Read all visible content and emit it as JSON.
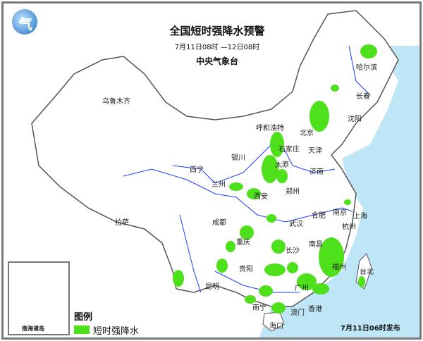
{
  "title": "全国短时强降水预警",
  "period": "7月11日08时 —12日08时",
  "agency": "中央气象台",
  "issued": "7月11日06时发布",
  "legend": {
    "title": "图例",
    "items": [
      {
        "label": "短时强降水",
        "color": "#4ee01a"
      }
    ]
  },
  "inset_label": "南海诸岛",
  "colors": {
    "sea": "#bfe6f7",
    "land": "#ffffff",
    "rain": "#4ee01a",
    "river": "#1a3cff",
    "border": "#555555"
  },
  "cities": [
    "乌鲁木齐",
    "哈尔滨",
    "长春",
    "沈阳",
    "呼和浩特",
    "北京",
    "天津",
    "石家庄",
    "银川",
    "太原",
    "济南",
    "西宁",
    "兰州",
    "郑州",
    "西安",
    "南京",
    "合肥",
    "上海",
    "成都",
    "武汉",
    "杭州",
    "拉萨",
    "重庆",
    "长沙",
    "南昌",
    "贵阳",
    "福州",
    "台北",
    "昆明",
    "广州",
    "南宁",
    "澳门",
    "香港",
    "海口"
  ]
}
